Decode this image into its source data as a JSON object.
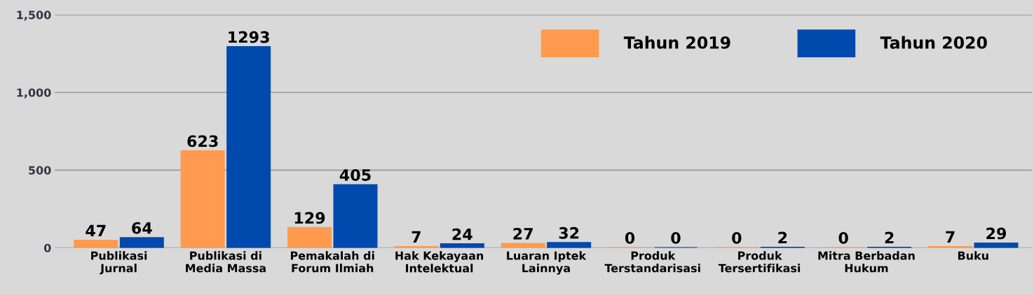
{
  "chart_data": {
    "type": "bar",
    "categories": [
      "Publikasi\nJurnal",
      "Publikasi di\nMedia Massa",
      "Pemakalah di\nForum Ilmiah",
      "Hak Kekayaan\nIntelektual",
      "Luaran Iptek\nLainnya",
      "Produk\nTerstandarisasi",
      "Produk\nTersertifikasi",
      "Mitra Berbadan\nHukum",
      "Buku"
    ],
    "series": [
      {
        "name": "Tahun 2019",
        "color": "#ff9a4f",
        "values": [
          47,
          623,
          129,
          7,
          27,
          0,
          0,
          0,
          7
        ]
      },
      {
        "name": "Tahun 2020",
        "color": "#004aad",
        "values": [
          64,
          1293,
          405,
          24,
          32,
          0,
          2,
          2,
          29
        ]
      }
    ],
    "ylim": [
      0,
      1500
    ],
    "yticks": [
      {
        "value": 0,
        "label": "0"
      },
      {
        "value": 500,
        "label": "500"
      },
      {
        "value": 1000,
        "label": "1,000"
      },
      {
        "value": 1500,
        "label": "1,500"
      }
    ],
    "grid": "y",
    "legend": "top right",
    "data_labels": true
  }
}
